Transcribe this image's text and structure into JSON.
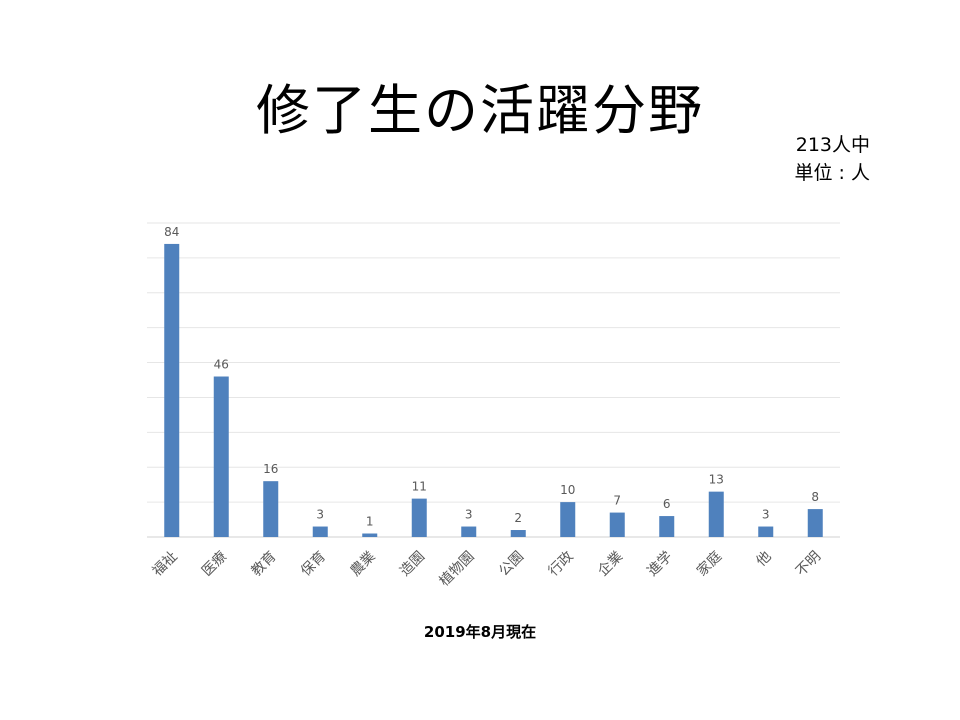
{
  "slide": {
    "title": "修了生の活躍分野",
    "total_note": "213人中",
    "unit_note": "単位 : 人"
  },
  "chart_data": {
    "type": "bar",
    "title": "",
    "xlabel": "2019年8月現在",
    "ylabel": "",
    "categories": [
      "福祉",
      "医療",
      "教育",
      "保育",
      "農業",
      "造園",
      "植物園",
      "公園",
      "行政",
      "企業",
      "進学",
      "家庭",
      "他",
      "不明"
    ],
    "values": [
      84,
      46,
      16,
      3,
      1,
      11,
      3,
      2,
      10,
      7,
      6,
      13,
      3,
      8
    ],
    "ylim": [
      0,
      90
    ],
    "y_gridline_step": 10,
    "grid": true,
    "y_tick_labels_shown": false,
    "data_labels": true,
    "bar_color": "#4f81bd",
    "grid_color": "#e6e6e6",
    "label_color": "#595959"
  }
}
